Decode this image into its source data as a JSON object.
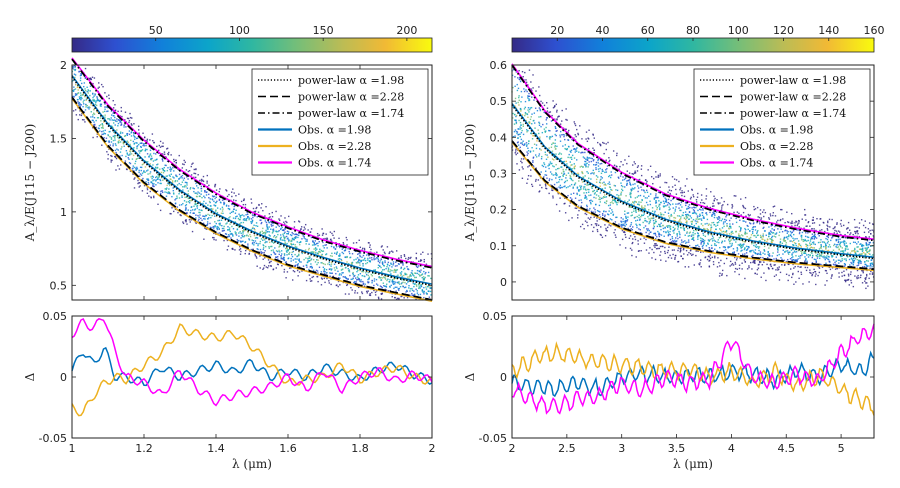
{
  "chart_data": [
    {
      "type": "scatter",
      "panel": "left-top",
      "colorbar": {
        "ticks": [
          50,
          100,
          150,
          200
        ],
        "range": [
          0,
          215
        ],
        "colormap": "parula"
      },
      "xlim": [
        1,
        2
      ],
      "ylim": [
        0.4,
        2.0
      ],
      "xticks": [
        "1",
        "1.2",
        "1.4",
        "1.6",
        "1.8",
        "2"
      ],
      "yticks": [
        "0.5",
        "1",
        "1.5",
        "2"
      ],
      "ylabel": "A_λ/E(J115 − J200)",
      "series": [
        {
          "name": "power-law α =1.98",
          "style": "dotted",
          "color": "#000000",
          "x": [
            1.0,
            1.1,
            1.2,
            1.3,
            1.4,
            1.5,
            1.6,
            1.7,
            1.8,
            1.9,
            2.0
          ],
          "y": [
            1.92,
            1.59,
            1.34,
            1.14,
            0.98,
            0.86,
            0.76,
            0.68,
            0.61,
            0.55,
            0.5
          ]
        },
        {
          "name": "power-law α =2.28",
          "style": "dashed",
          "color": "#000000",
          "x": [
            1.0,
            1.1,
            1.2,
            1.3,
            1.4,
            1.5,
            1.6,
            1.7,
            1.8,
            1.9,
            2.0
          ],
          "y": [
            1.78,
            1.45,
            1.2,
            1.01,
            0.86,
            0.74,
            0.64,
            0.57,
            0.5,
            0.45,
            0.4
          ]
        },
        {
          "name": "power-law α =1.74",
          "style": "dashdot",
          "color": "#000000",
          "x": [
            1.0,
            1.1,
            1.2,
            1.3,
            1.4,
            1.5,
            1.6,
            1.7,
            1.8,
            1.9,
            2.0
          ],
          "y": [
            2.04,
            1.72,
            1.48,
            1.28,
            1.12,
            0.99,
            0.89,
            0.8,
            0.73,
            0.67,
            0.62
          ]
        }
      ],
      "legend": [
        {
          "label": "power-law α =1.98",
          "style": "dotted",
          "color": "#000000"
        },
        {
          "label": "power-law α =2.28",
          "style": "dashed",
          "color": "#000000"
        },
        {
          "label": "power-law α =1.74",
          "style": "dashdot",
          "color": "#000000"
        },
        {
          "label": "Obs. α =1.98",
          "style": "solid",
          "color": "#0072BD"
        },
        {
          "label": "Obs. α =2.28",
          "style": "solid",
          "color": "#EDB120"
        },
        {
          "label": "Obs. α =1.74",
          "style": "solid",
          "color": "#FF00FF"
        }
      ],
      "legend_position": "top-right"
    },
    {
      "type": "line",
      "panel": "left-bottom",
      "xlim": [
        1,
        2
      ],
      "ylim": [
        -0.05,
        0.05
      ],
      "xticks": [
        "1",
        "1.2",
        "1.4",
        "1.6",
        "1.8",
        "2"
      ],
      "yticks": [
        "-0.05",
        "0",
        "0.05"
      ],
      "xlabel": "λ (μm)",
      "ylabel": "Δ",
      "series": [
        {
          "name": "α =1.98",
          "color": "#0072BD",
          "x": [
            1.0,
            1.03,
            1.06,
            1.09,
            1.12,
            1.15,
            1.2,
            1.25,
            1.3,
            1.35,
            1.4,
            1.45,
            1.5,
            1.55,
            1.6,
            1.65,
            1.7,
            1.75,
            1.8,
            1.85,
            1.9,
            1.95,
            2.0
          ],
          "y": [
            0.005,
            0.022,
            0.01,
            0.024,
            0.0,
            0.0,
            -0.005,
            0.008,
            0.0,
            0.005,
            0.01,
            0.004,
            0.012,
            0.0,
            0.005,
            0.0,
            0.008,
            0.003,
            -0.002,
            0.006,
            0.01,
            0.002,
            -0.003
          ]
        },
        {
          "name": "α =2.28",
          "color": "#EDB120",
          "x": [
            1.0,
            1.03,
            1.06,
            1.09,
            1.12,
            1.15,
            1.2,
            1.25,
            1.3,
            1.35,
            1.4,
            1.45,
            1.5,
            1.55,
            1.6,
            1.65,
            1.7,
            1.75,
            1.8,
            1.85,
            1.9,
            1.95,
            2.0
          ],
          "y": [
            -0.025,
            -0.03,
            -0.015,
            -0.005,
            0.0,
            -0.002,
            0.01,
            0.02,
            0.04,
            0.035,
            0.032,
            0.036,
            0.025,
            0.01,
            -0.005,
            -0.002,
            0.0,
            0.01,
            -0.002,
            0.004,
            0.008,
            0.0,
            -0.004
          ]
        },
        {
          "name": "α =1.74",
          "color": "#FF00FF",
          "x": [
            1.0,
            1.03,
            1.06,
            1.09,
            1.12,
            1.15,
            1.2,
            1.25,
            1.3,
            1.35,
            1.4,
            1.45,
            1.5,
            1.55,
            1.6,
            1.65,
            1.7,
            1.75,
            1.8,
            1.85,
            1.9,
            1.95,
            2.0
          ],
          "y": [
            0.035,
            0.045,
            0.04,
            0.05,
            0.02,
            0.0,
            -0.005,
            -0.015,
            0.005,
            -0.01,
            -0.02,
            -0.015,
            -0.012,
            -0.008,
            0.0,
            -0.01,
            0.005,
            -0.01,
            0.0,
            0.005,
            -0.003,
            0.002,
            -0.003
          ]
        }
      ]
    },
    {
      "type": "scatter",
      "panel": "right-top",
      "colorbar": {
        "ticks": [
          20,
          40,
          60,
          80,
          100,
          120,
          140,
          160
        ],
        "range": [
          0,
          160
        ],
        "colormap": "parula"
      },
      "xlim": [
        2,
        5.3
      ],
      "ylim": [
        -0.05,
        0.6
      ],
      "yticks": [
        "0",
        "0.1",
        "0.2",
        "0.3",
        "0.4",
        "0.5",
        "0.6"
      ],
      "ylabel": "A_λ/E(J115 − J200)",
      "series": [
        {
          "name": "power-law α =1.98",
          "style": "dotted",
          "color": "#000000",
          "x": [
            2.0,
            2.3,
            2.6,
            3.0,
            3.4,
            3.8,
            4.2,
            4.6,
            5.0,
            5.3
          ],
          "y": [
            0.49,
            0.37,
            0.29,
            0.22,
            0.17,
            0.135,
            0.11,
            0.09,
            0.075,
            0.065
          ]
        },
        {
          "name": "power-law α =2.28",
          "style": "dashed",
          "color": "#000000",
          "x": [
            2.0,
            2.3,
            2.6,
            3.0,
            3.4,
            3.8,
            4.2,
            4.6,
            5.0,
            5.3
          ],
          "y": [
            0.39,
            0.28,
            0.21,
            0.15,
            0.11,
            0.085,
            0.067,
            0.053,
            0.043,
            0.035
          ]
        },
        {
          "name": "power-law α =1.74",
          "style": "dashdot",
          "color": "#000000",
          "x": [
            2.0,
            2.3,
            2.6,
            3.0,
            3.4,
            3.8,
            4.2,
            4.6,
            5.0,
            5.3
          ],
          "y": [
            0.6,
            0.47,
            0.38,
            0.3,
            0.24,
            0.2,
            0.17,
            0.145,
            0.125,
            0.115
          ]
        }
      ],
      "legend": [
        {
          "label": "power-law α =1.98",
          "style": "dotted",
          "color": "#000000"
        },
        {
          "label": "power-law α =2.28",
          "style": "dashed",
          "color": "#000000"
        },
        {
          "label": "power-law α =1.74",
          "style": "dashdot",
          "color": "#000000"
        },
        {
          "label": "Obs. α =1.98",
          "style": "solid",
          "color": "#0072BD"
        },
        {
          "label": "Obs. α =2.28",
          "style": "solid",
          "color": "#EDB120"
        },
        {
          "label": "Obs. α =1.74",
          "style": "solid",
          "color": "#FF00FF"
        }
      ],
      "legend_position": "top-right"
    },
    {
      "type": "line",
      "panel": "right-bottom",
      "xlim": [
        2,
        5.3
      ],
      "ylim": [
        -0.05,
        0.05
      ],
      "xticks": [
        "2",
        "2.5",
        "3",
        "3.5",
        "4",
        "4.5",
        "5"
      ],
      "yticks": [
        "-0.05",
        "0",
        "0.05"
      ],
      "xlabel": "λ (μm)",
      "ylabel": "Δ",
      "series": [
        {
          "name": "α =1.98",
          "color": "#0072BD",
          "x": [
            2.0,
            2.2,
            2.4,
            2.6,
            2.8,
            3.0,
            3.2,
            3.4,
            3.6,
            3.8,
            4.0,
            4.2,
            4.4,
            4.6,
            4.8,
            5.0,
            5.2,
            5.3
          ],
          "y": [
            -0.005,
            -0.008,
            -0.01,
            -0.005,
            -0.01,
            0.0,
            0.003,
            0.0,
            0.002,
            0.0,
            0.005,
            0.002,
            -0.003,
            0.005,
            0.0,
            0.01,
            0.005,
            0.015
          ]
        },
        {
          "name": "α =2.28",
          "color": "#EDB120",
          "x": [
            2.0,
            2.2,
            2.4,
            2.6,
            2.8,
            3.0,
            3.2,
            3.4,
            3.6,
            3.8,
            4.0,
            4.2,
            4.4,
            4.6,
            4.8,
            5.0,
            5.2,
            5.3
          ],
          "y": [
            0.005,
            0.015,
            0.02,
            0.015,
            0.012,
            0.01,
            0.008,
            0.005,
            0.006,
            0.0,
            0.005,
            -0.005,
            0.005,
            -0.008,
            0.002,
            -0.01,
            -0.02,
            -0.025
          ]
        },
        {
          "name": "α =1.74",
          "color": "#FF00FF",
          "x": [
            2.0,
            2.2,
            2.4,
            2.6,
            2.8,
            3.0,
            3.2,
            3.4,
            3.6,
            3.8,
            4.0,
            4.2,
            4.4,
            4.6,
            4.8,
            5.0,
            5.2,
            5.3
          ],
          "y": [
            -0.01,
            -0.02,
            -0.025,
            -0.018,
            -0.015,
            -0.005,
            -0.01,
            0.0,
            -0.005,
            -0.002,
            0.03,
            0.0,
            -0.005,
            0.002,
            -0.003,
            0.02,
            0.035,
            0.04
          ]
        }
      ]
    }
  ]
}
